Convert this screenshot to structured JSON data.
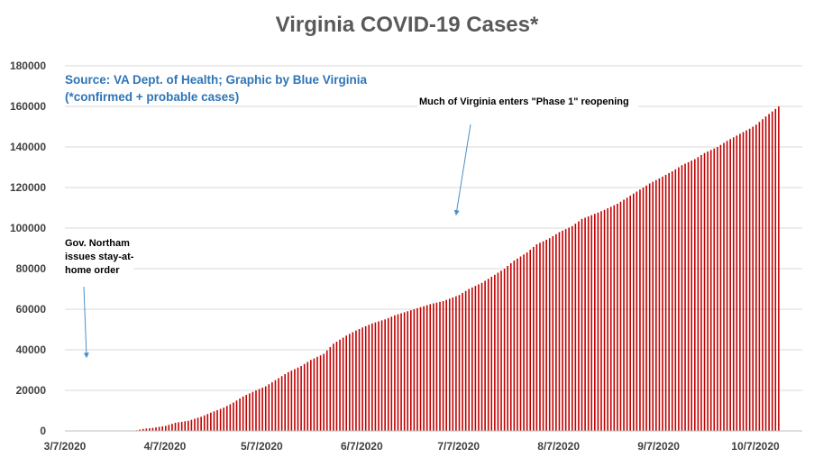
{
  "chart_data": {
    "type": "bar",
    "title": "Virginia COVID-19 Cases*",
    "source_line_1": "Source: VA Dept. of Health; Graphic by Blue Virginia",
    "source_line_2": "(*confirmed + probable cases)",
    "xlabel": "",
    "ylabel": "",
    "ylim": [
      0,
      180000
    ],
    "y_ticks": [
      0,
      20000,
      40000,
      60000,
      80000,
      100000,
      120000,
      140000,
      160000,
      180000
    ],
    "x_tick_labels": [
      "3/7/2020",
      "4/7/2020",
      "5/7/2020",
      "6/7/2020",
      "7/7/2020",
      "8/7/2020",
      "9/7/2020",
      "10/7/2020"
    ],
    "x_tick_dates": [
      "2020-03-07",
      "2020-04-07",
      "2020-05-07",
      "2020-06-07",
      "2020-07-07",
      "2020-08-07",
      "2020-09-07",
      "2020-10-07"
    ],
    "x_range": [
      "2020-03-07",
      "2020-10-15"
    ],
    "grid": "horizontal",
    "bar_color": "#c00000",
    "series": [
      {
        "dates": [
          "2020-03-07",
          "2020-03-14",
          "2020-03-21",
          "2020-03-28",
          "2020-03-31",
          "2020-04-03",
          "2020-04-07",
          "2020-04-10",
          "2020-04-14",
          "2020-04-18",
          "2020-04-21",
          "2020-04-25",
          "2020-04-28",
          "2020-05-01",
          "2020-05-05",
          "2020-05-08",
          "2020-05-12",
          "2020-05-15",
          "2020-05-19",
          "2020-05-22",
          "2020-05-26",
          "2020-05-29",
          "2020-06-02",
          "2020-06-05",
          "2020-06-07",
          "2020-06-10",
          "2020-06-14",
          "2020-06-17",
          "2020-06-21",
          "2020-06-25",
          "2020-06-28",
          "2020-07-02",
          "2020-07-07",
          "2020-07-10",
          "2020-07-14",
          "2020-07-17",
          "2020-07-21",
          "2020-07-24",
          "2020-07-28",
          "2020-07-31",
          "2020-08-04",
          "2020-08-07",
          "2020-08-11",
          "2020-08-14",
          "2020-08-18",
          "2020-08-21",
          "2020-08-25",
          "2020-08-28",
          "2020-09-01",
          "2020-09-04",
          "2020-09-07",
          "2020-09-11",
          "2020-09-14",
          "2020-09-18",
          "2020-09-21",
          "2020-09-25",
          "2020-09-28",
          "2020-10-02",
          "2020-10-05",
          "2020-10-07",
          "2020-10-10",
          "2020-10-14"
        ],
        "values": [
          0,
          0,
          0,
          0,
          1000,
          1500,
          2500,
          4000,
          5000,
          7000,
          9000,
          11500,
          14000,
          17000,
          20000,
          22000,
          26000,
          29000,
          32000,
          35000,
          38000,
          43000,
          47000,
          49500,
          51000,
          53000,
          55000,
          57000,
          59000,
          61000,
          62500,
          64000,
          67000,
          70000,
          73000,
          76000,
          80000,
          84000,
          88000,
          92000,
          95000,
          98000,
          101000,
          104500,
          107000,
          109000,
          112000,
          115000,
          119000,
          122000,
          124500,
          128000,
          131000,
          134000,
          137000,
          140000,
          143000,
          146500,
          149000,
          151000,
          155000,
          160000
        ]
      }
    ],
    "annotations": [
      {
        "text": [
          "Gov. Northam",
          "issues stay-at-",
          "home order"
        ],
        "target_date": "2020-03-30",
        "target_value": 40000
      },
      {
        "text": [
          "Much of Virginia enters \"Phase 1\" reopening"
        ],
        "target_date": "2020-05-15",
        "target_value": 107000
      }
    ]
  }
}
